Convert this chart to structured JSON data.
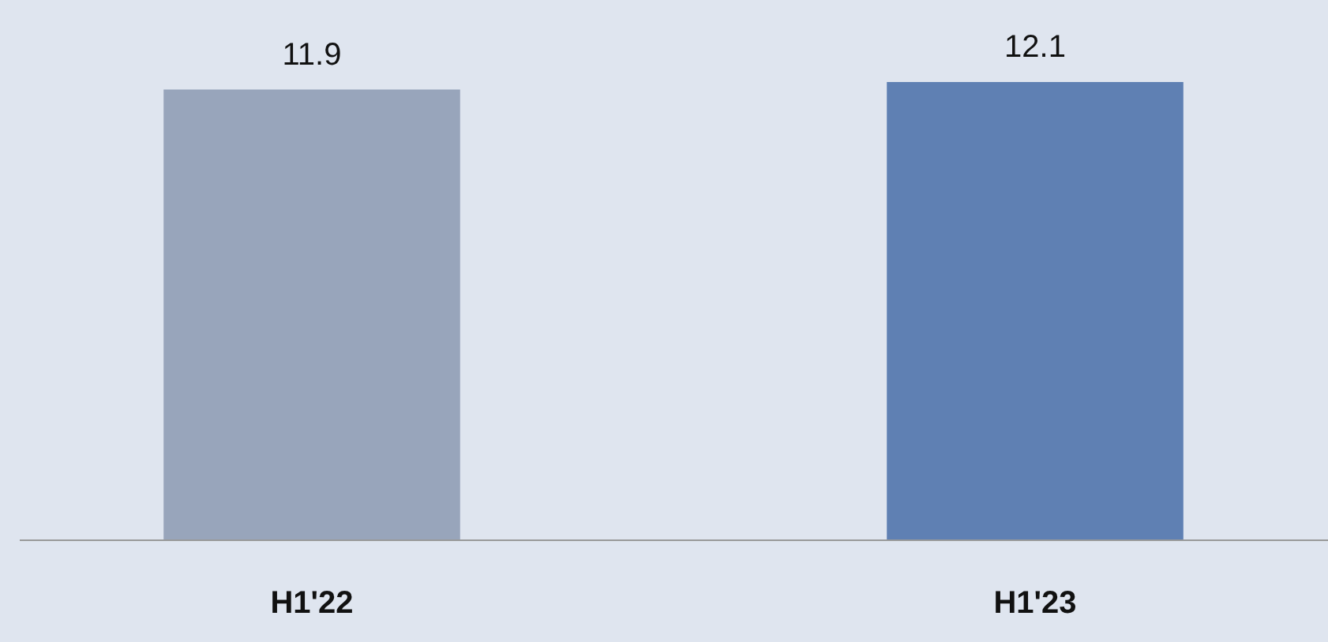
{
  "chart_data": {
    "type": "bar",
    "categories": [
      "H1'22",
      "H1'23"
    ],
    "values": [
      11.9,
      12.1
    ],
    "colors": [
      "#98a5bb",
      "#5f80b3"
    ],
    "data_labels": true
  }
}
